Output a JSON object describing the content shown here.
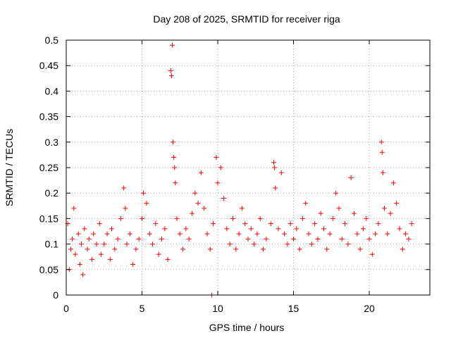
{
  "chart_data": {
    "type": "scatter",
    "title": "Day 208 of 2025, SRMTID for receiver riga",
    "xlabel": "GPS time / hours",
    "ylabel": "SRMTID / TECUs",
    "xlim": [
      0,
      24
    ],
    "ylim": [
      0,
      0.5
    ],
    "xticks": [
      0,
      5,
      10,
      15,
      20
    ],
    "xtick_labels": [
      "0",
      "5",
      "10",
      "15",
      "20"
    ],
    "yticks": [
      0,
      0.05,
      0.1,
      0.15,
      0.2,
      0.25,
      0.3,
      0.35,
      0.4,
      0.45,
      0.5
    ],
    "ytick_labels": [
      "0",
      "0.05",
      "0.1",
      "0.15",
      "0.2",
      "0.25",
      "0.3",
      "0.35",
      "0.4",
      "0.45",
      "0.5"
    ],
    "grid": true,
    "marker": "+",
    "color": "#ff0000",
    "series": [
      {
        "name": "SRMTID",
        "points": [
          [
            0.1,
            0.14
          ],
          [
            0.2,
            0.05
          ],
          [
            0.3,
            0.09
          ],
          [
            0.4,
            0.11
          ],
          [
            0.5,
            0.17
          ],
          [
            0.6,
            0.08
          ],
          [
            0.8,
            0.12
          ],
          [
            0.9,
            0.06
          ],
          [
            1.0,
            0.1
          ],
          [
            1.1,
            0.04
          ],
          [
            1.2,
            0.13
          ],
          [
            1.4,
            0.09
          ],
          [
            1.5,
            0.11
          ],
          [
            1.7,
            0.07
          ],
          [
            1.8,
            0.12
          ],
          [
            2.0,
            0.1
          ],
          [
            2.2,
            0.14
          ],
          [
            2.3,
            0.08
          ],
          [
            2.5,
            0.1
          ],
          [
            2.7,
            0.12
          ],
          [
            2.9,
            0.07
          ],
          [
            3.0,
            0.13
          ],
          [
            3.2,
            0.09
          ],
          [
            3.4,
            0.11
          ],
          [
            3.6,
            0.15
          ],
          [
            3.8,
            0.21
          ],
          [
            3.9,
            0.17
          ],
          [
            4.0,
            0.1
          ],
          [
            4.2,
            0.12
          ],
          [
            4.4,
            0.06
          ],
          [
            4.6,
            0.09
          ],
          [
            4.8,
            0.11
          ],
          [
            5.0,
            0.15
          ],
          [
            5.1,
            0.2
          ],
          [
            5.3,
            0.18
          ],
          [
            5.5,
            0.12
          ],
          [
            5.7,
            0.1
          ],
          [
            5.9,
            0.14
          ],
          [
            6.1,
            0.08
          ],
          [
            6.3,
            0.11
          ],
          [
            6.5,
            0.13
          ],
          [
            6.7,
            0.07
          ],
          [
            6.9,
            0.44
          ],
          [
            6.95,
            0.43
          ],
          [
            7.0,
            0.49
          ],
          [
            7.05,
            0.3
          ],
          [
            7.1,
            0.27
          ],
          [
            7.15,
            0.25
          ],
          [
            7.2,
            0.22
          ],
          [
            7.3,
            0.15
          ],
          [
            7.5,
            0.12
          ],
          [
            7.7,
            0.09
          ],
          [
            7.9,
            0.13
          ],
          [
            8.1,
            0.11
          ],
          [
            8.3,
            0.16
          ],
          [
            8.5,
            0.2
          ],
          [
            8.7,
            0.18
          ],
          [
            8.9,
            0.24
          ],
          [
            9.1,
            0.17
          ],
          [
            9.3,
            0.12
          ],
          [
            9.5,
            0.09
          ],
          [
            9.7,
            0.14
          ],
          [
            9.9,
            0.27
          ],
          [
            10.0,
            0.22
          ],
          [
            10.2,
            0.25
          ],
          [
            10.4,
            0.19
          ],
          [
            10.6,
            0.13
          ],
          [
            10.8,
            0.1
          ],
          [
            11.0,
            0.15
          ],
          [
            11.2,
            0.09
          ],
          [
            11.4,
            0.12
          ],
          [
            11.6,
            0.17
          ],
          [
            11.8,
            0.14
          ],
          [
            12.0,
            0.11
          ],
          [
            12.2,
            0.13
          ],
          [
            12.4,
            0.1
          ],
          [
            12.6,
            0.12
          ],
          [
            12.8,
            0.15
          ],
          [
            13.0,
            0.09
          ],
          [
            13.2,
            0.11
          ],
          [
            13.5,
            0.14
          ],
          [
            13.7,
            0.26
          ],
          [
            13.75,
            0.25
          ],
          [
            13.8,
            0.21
          ],
          [
            14.0,
            0.13
          ],
          [
            14.2,
            0.24
          ],
          [
            14.4,
            0.12
          ],
          [
            14.6,
            0.1
          ],
          [
            14.8,
            0.14
          ],
          [
            15.0,
            0.11
          ],
          [
            15.2,
            0.13
          ],
          [
            15.4,
            0.09
          ],
          [
            15.6,
            0.15
          ],
          [
            15.8,
            0.18
          ],
          [
            16.0,
            0.12
          ],
          [
            16.2,
            0.1
          ],
          [
            16.4,
            0.14
          ],
          [
            16.6,
            0.11
          ],
          [
            16.8,
            0.16
          ],
          [
            17.0,
            0.13
          ],
          [
            17.2,
            0.09
          ],
          [
            17.4,
            0.12
          ],
          [
            17.6,
            0.15
          ],
          [
            17.8,
            0.2
          ],
          [
            18.0,
            0.17
          ],
          [
            18.2,
            0.11
          ],
          [
            18.4,
            0.14
          ],
          [
            18.6,
            0.1
          ],
          [
            18.8,
            0.23
          ],
          [
            19.0,
            0.16
          ],
          [
            19.2,
            0.12
          ],
          [
            19.4,
            0.09
          ],
          [
            19.6,
            0.13
          ],
          [
            19.8,
            0.15
          ],
          [
            20.0,
            0.11
          ],
          [
            20.2,
            0.08
          ],
          [
            20.4,
            0.12
          ],
          [
            20.6,
            0.14
          ],
          [
            20.8,
            0.3
          ],
          [
            20.85,
            0.28
          ],
          [
            20.9,
            0.24
          ],
          [
            21.0,
            0.17
          ],
          [
            21.2,
            0.12
          ],
          [
            21.4,
            0.16
          ],
          [
            21.6,
            0.22
          ],
          [
            21.8,
            0.18
          ],
          [
            22.0,
            0.13
          ],
          [
            22.2,
            0.09
          ],
          [
            22.4,
            0.12
          ],
          [
            22.6,
            0.11
          ],
          [
            22.8,
            0.14
          ],
          [
            9.6,
            0.0
          ]
        ]
      }
    ]
  }
}
